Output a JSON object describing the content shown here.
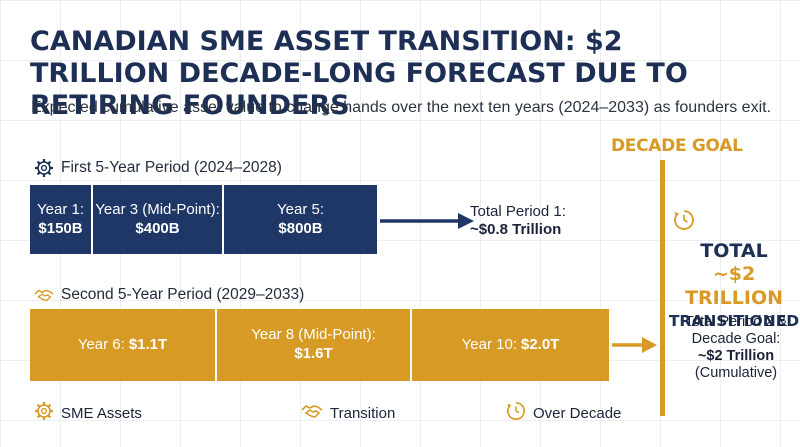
{
  "title": "CANADIAN SME ASSET TRANSITION: $2 TRILLION DECADE-LONG FORECAST DUE TO RETIRING FOUNDERS",
  "subtitle": "Expected cumulative asset value to change hands over the next ten years (2024–2033) as founders exit.",
  "period1": {
    "label": "First 5-Year Period (2024–2028)",
    "icon": "gear-icon",
    "segments": [
      {
        "label": "Year 1:",
        "value": "$150B"
      },
      {
        "label": "Year 3 (Mid-Point):",
        "value": "$400B"
      },
      {
        "label": "Year 5:",
        "value": "$800B"
      }
    ],
    "total_label": "Total Period 1:",
    "total_value": "~$0.8 Trillion"
  },
  "period2": {
    "label": "Second 5-Year Period (2029–2033)",
    "icon": "handshake-icon",
    "segments": [
      {
        "label": "Year 6:",
        "value": "$1.1T"
      },
      {
        "label": "Year 8 (Mid-Point):",
        "value": "$1.6T"
      },
      {
        "label": "Year 10:",
        "value": "$2.0T"
      }
    ]
  },
  "goal": {
    "title": "DECADE GOAL",
    "icon": "clock-icon",
    "line1": "TOTAL",
    "line2": "~$2 TRILLION",
    "line3": "TRANSITIONED",
    "desc_label": "Total Period 2 & Decade Goal:",
    "desc_value": "~$2 Trillion",
    "desc_note": "(Cumulative)"
  },
  "footer": [
    {
      "icon": "gear-icon",
      "label": "SME Assets"
    },
    {
      "icon": "handshake-icon",
      "label": "Transition"
    },
    {
      "icon": "clock-icon",
      "label": "Over Decade"
    }
  ],
  "colors": {
    "navy": "#1e3766",
    "gold": "#d79a24"
  },
  "chart_data": {
    "type": "bar",
    "title": "CANADIAN SME ASSET TRANSITION: $2 TRILLION DECADE-LONG FORECAST DUE TO RETIRING FOUNDERS",
    "categories": [
      "Year 1",
      "Year 3",
      "Year 5",
      "Year 6",
      "Year 8",
      "Year 10"
    ],
    "series": [
      {
        "name": "First 5-Year Period (2024–2028)",
        "values": [
          150,
          400,
          800,
          null,
          null,
          null
        ]
      },
      {
        "name": "Second 5-Year Period (2029–2033)",
        "values": [
          null,
          null,
          null,
          1100,
          1600,
          2000
        ]
      }
    ],
    "unit": "$B cumulative"
  }
}
